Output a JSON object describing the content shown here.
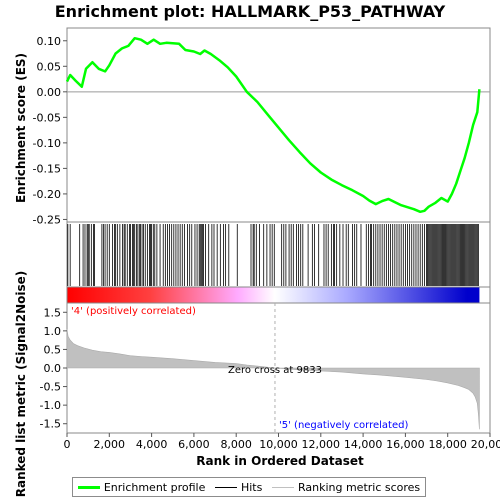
{
  "chart_data": {
    "type": "line",
    "title": "Enrichment plot: HALLMARK_P53_PATHWAY",
    "xlabel": "Rank in Ordered Dataset",
    "top_panel": {
      "ylabel": "Enrichment score (ES)",
      "ylim": [
        -0.255,
        0.125
      ],
      "yticks": [
        0.1,
        0.05,
        0.0,
        -0.05,
        -0.1,
        -0.15,
        -0.2,
        -0.25
      ],
      "ytick_labels": [
        "0.10",
        "0.05",
        "0.00",
        "-0.05",
        "-0.10",
        "-0.15",
        "-0.20",
        "-0.25"
      ],
      "series": [
        {
          "name": "Enrichment profile",
          "color": "#00ff00",
          "x": [
            0,
            150,
            400,
            700,
            900,
            1200,
            1500,
            1800,
            2000,
            2300,
            2600,
            2900,
            3200,
            3500,
            3800,
            4100,
            4400,
            4700,
            5000,
            5300,
            5600,
            6000,
            6300,
            6500,
            6800,
            7200,
            7600,
            8000,
            8500,
            9000,
            9500,
            10000,
            10500,
            11000,
            11500,
            12000,
            12500,
            13000,
            13500,
            14000,
            14300,
            14600,
            14900,
            15200,
            15500,
            15800,
            16100,
            16400,
            16700,
            16900,
            17100,
            17400,
            17700,
            18000,
            18200,
            18400,
            18600,
            18800,
            19000,
            19200,
            19400,
            19500
          ],
          "y": [
            0.02,
            0.033,
            0.022,
            0.01,
            0.045,
            0.058,
            0.045,
            0.04,
            0.052,
            0.075,
            0.085,
            0.09,
            0.105,
            0.102,
            0.094,
            0.102,
            0.094,
            0.096,
            0.095,
            0.094,
            0.082,
            0.079,
            0.074,
            0.081,
            0.074,
            0.062,
            0.048,
            0.03,
            0.0,
            -0.02,
            -0.045,
            -0.07,
            -0.095,
            -0.118,
            -0.14,
            -0.158,
            -0.172,
            -0.183,
            -0.193,
            -0.204,
            -0.213,
            -0.22,
            -0.214,
            -0.21,
            -0.216,
            -0.222,
            -0.226,
            -0.23,
            -0.235,
            -0.233,
            -0.225,
            -0.218,
            -0.208,
            -0.215,
            -0.2,
            -0.18,
            -0.155,
            -0.13,
            -0.1,
            -0.065,
            -0.04,
            0.005
          ]
        }
      ]
    },
    "hits_panel": {
      "series_name": "Hits",
      "color": "#000000",
      "hits": [
        40,
        150,
        600,
        760,
        850,
        950,
        1000,
        1050,
        1150,
        1250,
        1300,
        1650,
        1720,
        1800,
        1900,
        2000,
        2150,
        2250,
        2300,
        2380,
        2500,
        2620,
        2700,
        2750,
        2850,
        2950,
        3000,
        3100,
        3150,
        3200,
        3280,
        3350,
        3420,
        3480,
        3550,
        3620,
        3700,
        3800,
        3900,
        3950,
        4000,
        4080,
        4150,
        4250,
        4400,
        4550,
        4650,
        4750,
        4850,
        4950,
        5050,
        5150,
        5250,
        5350,
        5450,
        5550,
        5700,
        5800,
        5900,
        6050,
        6150,
        6250,
        6300,
        6350,
        6400,
        6450,
        6550,
        6700,
        6850,
        6950,
        7100,
        7250,
        7400,
        7500,
        7650,
        8050,
        8700,
        8800,
        8850,
        8950,
        9100,
        9300,
        9450,
        9600,
        9700,
        9800,
        10150,
        10250,
        10350,
        10500,
        10600,
        10700,
        10850,
        10950,
        11050,
        11150,
        11400,
        11600,
        11700,
        11900,
        12150,
        12250,
        12350,
        12500,
        12600,
        12650,
        12750,
        12900,
        13050,
        13200,
        13300,
        13500,
        13600,
        13700,
        13900,
        14150,
        14250,
        14350,
        14400,
        14500,
        14600,
        14700,
        14800,
        14900,
        15000,
        15100,
        15200,
        15300,
        15400,
        15500,
        15600,
        15700,
        15800,
        15900,
        16000,
        16100,
        16200,
        16300,
        16400,
        16500,
        16600,
        16700,
        16800,
        16900,
        17000,
        17050,
        17100,
        17150,
        17200,
        17250,
        17300,
        17350,
        17400,
        17450,
        17500,
        17550,
        17600,
        17650,
        17700,
        17750,
        17800,
        17850,
        17900,
        17950,
        18000,
        18050,
        18100,
        18150,
        18200,
        18250,
        18300,
        18350,
        18400,
        18450,
        18500,
        18550,
        18600,
        18650,
        18700,
        18750,
        18800,
        18850,
        18900,
        18950,
        19000,
        19050,
        19100,
        19150,
        19200,
        19250,
        19300,
        19350,
        19400,
        19450
      ]
    },
    "metric_panel": {
      "ylabel": "Ranked list metric (Signal2Noise)",
      "series_name": "Ranking metric scores",
      "color": "#c0c0c0",
      "ylim": [
        -1.75,
        1.75
      ],
      "yticks": [
        1.5,
        1.0,
        0.5,
        0.0,
        -0.5,
        -1.0,
        -1.5
      ],
      "ytick_labels": [
        "1.5",
        "1.0",
        "0.5",
        "0.0",
        "-0.5",
        "-1.0",
        "-1.5"
      ],
      "x": [
        0,
        50,
        150,
        300,
        500,
        800,
        1200,
        1600,
        2000,
        2500,
        3000,
        3500,
        4000,
        5000,
        6000,
        7000,
        8000,
        8500,
        9000,
        9833,
        10500,
        11000,
        12000,
        13000,
        14000,
        15000,
        16000,
        17000,
        17500,
        18000,
        18500,
        18800,
        19000,
        19200,
        19300,
        19400,
        19450,
        19500
      ],
      "y": [
        1.05,
        0.85,
        0.75,
        0.66,
        0.6,
        0.54,
        0.48,
        0.44,
        0.42,
        0.38,
        0.33,
        0.31,
        0.29,
        0.25,
        0.2,
        0.15,
        0.12,
        0.08,
        0.05,
        0.0,
        -0.03,
        -0.05,
        -0.08,
        -0.11,
        -0.16,
        -0.2,
        -0.25,
        -0.31,
        -0.35,
        -0.4,
        -0.47,
        -0.53,
        -0.58,
        -0.68,
        -0.78,
        -0.95,
        -1.25,
        -1.65
      ],
      "annotations": {
        "positive": "'4' (positively correlated)",
        "zero_cross": "Zero cross at 9833",
        "negative": "'5' (negatively correlated)"
      },
      "annotation_colors": {
        "positive": "#ff0000",
        "negative": "#0000ff",
        "zero_cross": "#000000"
      }
    },
    "xlim": [
      0,
      20000
    ],
    "xticks": [
      0,
      2000,
      4000,
      6000,
      8000,
      10000,
      12000,
      14000,
      16000,
      18000,
      20000
    ],
    "xtick_labels": [
      "0",
      "2,000",
      "4,000",
      "6,000",
      "8,000",
      "10,000",
      "12,000",
      "14,000",
      "16,000",
      "18,000",
      "20,000"
    ],
    "n_genes": 19500,
    "zero_cross": 9833,
    "gradient_colors": [
      "#ff0000",
      "#ffaaff",
      "#ffffff",
      "#aaaaff",
      "#0000cc"
    ]
  },
  "legend": [
    {
      "label": "Enrichment profile",
      "color": "#00ff00",
      "width": 3
    },
    {
      "label": "Hits",
      "color": "#000000",
      "width": 1
    },
    {
      "label": "Ranking metric scores",
      "color": "#c0c0c0",
      "width": 1
    }
  ]
}
